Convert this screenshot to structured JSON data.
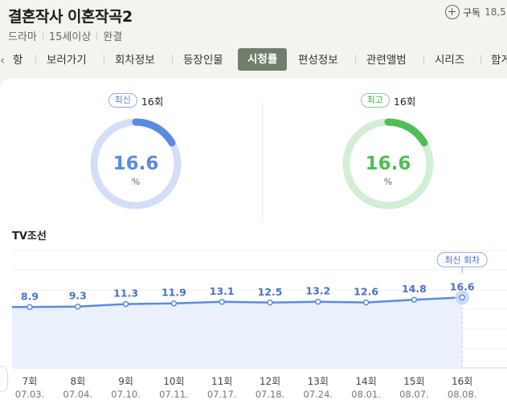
{
  "header": {
    "title": "결혼작사 이혼작곡2",
    "genre": "드라마",
    "rating": "15세이상",
    "status": "완결",
    "subscribe_label": "구독",
    "subscribe_count": "18,5",
    "subscribe_icon": "plus-circle-icon"
  },
  "tabs": {
    "prev_icon": "chevron-left-icon",
    "prev_partial": "항",
    "items": [
      "보러가기",
      "회차정보",
      "등장인물",
      "시청률",
      "편성정보",
      "관련앨범",
      "시리즈",
      "함게"
    ],
    "active": "시청률"
  },
  "latest": {
    "badge": "최신",
    "episode": "16회",
    "value": "16.6",
    "unit": "%",
    "fraction": 0.166,
    "color": "#5b8ae0",
    "track": "#d3dff7"
  },
  "best": {
    "badge": "최고",
    "episode": "16회",
    "value": "16.6",
    "unit": "%",
    "fraction": 0.166,
    "color": "#4fbe55",
    "track": "#d2eed4"
  },
  "section_title": "TV조선",
  "latest_callout": "최신 회차",
  "chart_data": {
    "type": "area",
    "categories": [
      "7회",
      "8회",
      "9회",
      "10회",
      "11회",
      "12회",
      "13회",
      "14회",
      "15회",
      "16회"
    ],
    "dates": [
      "07.03.",
      "07.04.",
      "07.10.",
      "07.11.",
      "07.17.",
      "07.18.",
      "07.24.",
      "08.01.",
      "08.07.",
      "08.08."
    ],
    "values": [
      8.9,
      9.3,
      11.3,
      11.9,
      13.1,
      12.5,
      13.2,
      12.6,
      14.8,
      16.6
    ],
    "ylim": [
      -40,
      55
    ],
    "line_color": "#5b8ae0",
    "fill_color": "#eaf1fd",
    "grid": true
  }
}
